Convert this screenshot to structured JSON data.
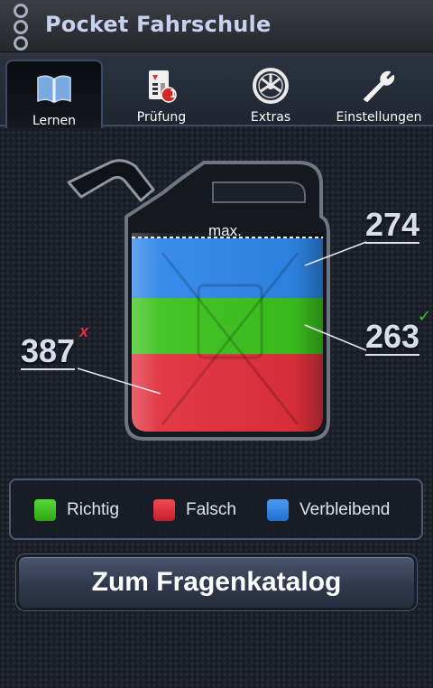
{
  "app": {
    "title": "Pocket Fahrschule"
  },
  "tabs": [
    {
      "label": "Lernen",
      "icon": "book-icon",
      "active": true
    },
    {
      "label": "Prüfung",
      "icon": "exam-card-icon",
      "badge": "1"
    },
    {
      "label": "Extras",
      "icon": "wheel-icon"
    },
    {
      "label": "Einstellungen",
      "icon": "wrench-icon"
    }
  ],
  "canister": {
    "max_label": "max.",
    "remaining": "274",
    "correct": "263",
    "wrong": "387",
    "correct_mark": "✓",
    "wrong_mark": "x"
  },
  "legend": [
    {
      "label": "Richtig",
      "color": "#3cc21e"
    },
    {
      "label": "Falsch",
      "color": "#e0303c"
    },
    {
      "label": "Verbleibend",
      "color": "#2f86e8"
    }
  ],
  "colors": {
    "remaining_fill": "#2f86e8",
    "correct_fill": "#3cc21e",
    "wrong_fill": "#e0303c"
  },
  "button": {
    "label": "Zum Fragenkatalog"
  }
}
